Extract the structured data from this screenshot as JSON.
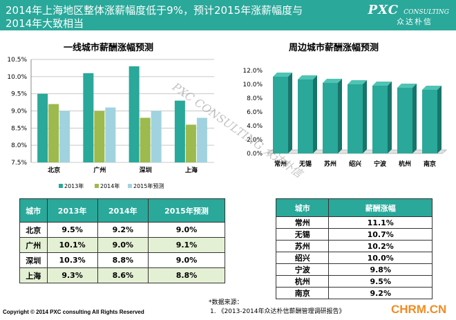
{
  "header": {
    "line1": "2014年上海地区整体涨薪幅度低于9%，预计2015年涨薪幅度与",
    "line2": "2014年大致相当",
    "logo_main": "PXC",
    "logo_sub": "CONSULTING",
    "logo_cn": "众达朴信",
    "background": "#2aa89a"
  },
  "left_chart": {
    "title": "一线城市薪酬涨幅预测",
    "legend": [
      "2013年",
      "2014年",
      "2015年预测"
    ]
  },
  "right_chart": {
    "title": "周边城市薪酬涨幅预测"
  },
  "chart_data": [
    {
      "type": "bar",
      "title": "一线城市薪酬涨幅预测",
      "categories": [
        "北京",
        "广州",
        "深圳",
        "上海"
      ],
      "series": [
        {
          "name": "2013年",
          "values": [
            9.5,
            10.1,
            10.3,
            9.3
          ],
          "color": "#2aa89a"
        },
        {
          "name": "2014年",
          "values": [
            9.2,
            9.0,
            8.8,
            8.6
          ],
          "color": "#9cba4d"
        },
        {
          "name": "2015年预测",
          "values": [
            9.0,
            9.1,
            9.0,
            8.8
          ],
          "color": "#a0d3df"
        }
      ],
      "ylim": [
        7.5,
        10.5
      ],
      "yticks": [
        "7.5%",
        "8.0%",
        "8.5%",
        "9.0%",
        "9.5%",
        "10.0%",
        "10.5%"
      ],
      "grid": true,
      "legend_position": "bottom"
    },
    {
      "type": "bar",
      "title": "周边城市薪酬涨幅预测",
      "categories": [
        "常州",
        "无锡",
        "苏州",
        "绍兴",
        "宁波",
        "杭州",
        "南京"
      ],
      "values": [
        11.1,
        10.7,
        10.2,
        10.0,
        9.8,
        9.5,
        9.2
      ],
      "color": "#2aa89a",
      "ylim": [
        0,
        12
      ],
      "yticks": [
        "0.0%",
        "2.0%",
        "4.0%",
        "6.0%",
        "8.0%",
        "10.0%",
        "12.0%"
      ],
      "style": "3d",
      "grid": false
    }
  ],
  "table1": {
    "headers": [
      "城市",
      "2013年",
      "2014年",
      "2015年预测"
    ],
    "rows": [
      [
        "北京",
        "9.5%",
        "9.2%",
        "9.0%"
      ],
      [
        "广州",
        "10.1%",
        "9.0%",
        "9.1%"
      ],
      [
        "深圳",
        "10.3%",
        "8.8%",
        "9.0%"
      ],
      [
        "上海",
        "9.3%",
        "8.6%",
        "8.8%"
      ]
    ]
  },
  "table2": {
    "headers": [
      "城市",
      "薪酬涨幅"
    ],
    "rows": [
      [
        "常州",
        "11.1%"
      ],
      [
        "无锡",
        "10.7%"
      ],
      [
        "苏州",
        "10.2%"
      ],
      [
        "绍兴",
        "10.0%"
      ],
      [
        "宁波",
        "9.8%"
      ],
      [
        "杭州",
        "9.5%"
      ],
      [
        "南京",
        "9.2%"
      ]
    ]
  },
  "footer": {
    "copyright": "Copyright © 2014  PXC consulting All Rights Reserved",
    "source_label": "*数据来源：",
    "source_item": "1.    《2013-2014年众达朴信薪酬管理调研报告》",
    "site": "CHRM.CN"
  },
  "watermark": {
    "text": "PXC CONSULTING 众达朴信"
  }
}
